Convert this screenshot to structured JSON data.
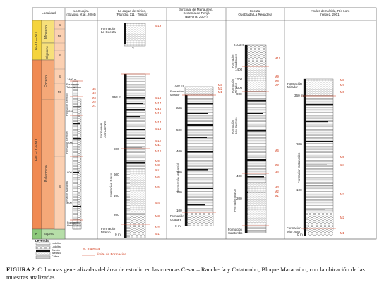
{
  "headers": {
    "localidad": "Localidad",
    "col1": [
      "La Guajira",
      "(Bayona et al.,2004)"
    ],
    "col2": [
      "La Jagua de Ibirico,",
      "(Plancha 111 - Toledo)"
    ],
    "col3": [
      "Sinclinal de Manaurete,",
      "Serranía de Perijá",
      "(Bayona, 2007)"
    ],
    "col4": [
      "Cúcuta,",
      "Quebrada La Regadera"
    ],
    "col5": [
      "Andes de Mérida, Río Loro",
      "(Yepez, 2001)"
    ]
  },
  "time_scale": {
    "neogene": "NEOGENO",
    "mioceno": "Mioceno",
    "oligoceno": "Oligoceno",
    "paleogeno": "PALEOGENO",
    "eoceno": "Eoceno",
    "paleoceno": "Paleoceno",
    "k": "K",
    "supurio": "Superio",
    "letters": [
      "S",
      "M",
      "I",
      "S",
      "I",
      "S",
      "M",
      "I",
      "S",
      "I"
    ]
  },
  "col1": {
    "ticks": [
      "1400 m",
      "1200",
      "1000",
      "800",
      "600"
    ],
    "samples": [
      "M5",
      "M4",
      "M3",
      "M2",
      "M1"
    ],
    "formations": [
      [
        "Formación",
        "Tabaco"
      ],
      [
        "Formación Cerrejón",
        "(Unidad",
        "superior)"
      ],
      [
        "Formación Cerrejón",
        "(Unidad",
        "inferior)"
      ],
      [
        "Formación Manantial"
      ],
      [
        "Formación",
        "Hato Nuevo"
      ]
    ]
  },
  "col2": {
    "ticks": [
      "950 m",
      "800",
      "600",
      "400",
      "200",
      "0 m"
    ],
    "samples": [
      "M19",
      "M18",
      "M17",
      "M16",
      "M15",
      "M14",
      "M13",
      "M12",
      "M11",
      "M10",
      "M9",
      "M8",
      "M7",
      "M6",
      "M5",
      "M4",
      "M3",
      "M2",
      "M1"
    ],
    "question": "?",
    "formations": [
      [
        "Formación",
        "La Cuesta"
      ],
      [
        "Formación",
        "Los Cuervos"
      ],
      [
        "Formación Barco"
      ],
      [
        "Formación",
        "Molino"
      ]
    ]
  },
  "col3": {
    "ticks": [
      "700 m",
      "600",
      "500",
      "400",
      "300",
      "200",
      "100",
      "0 m"
    ],
    "samples": [
      "M3",
      "M2",
      "M1"
    ],
    "formations": [
      [
        "Formación",
        "Mirador"
      ],
      [
        "Formación Manantial"
      ],
      [
        "Formación",
        "Guasare"
      ]
    ]
  },
  "col4": {
    "ticks": [
      "2100 m",
      "1400",
      "1200",
      "1000",
      "900",
      "400",
      "200"
    ],
    "samples": [
      "M10",
      "M9",
      "M8",
      "M7",
      "M6",
      "M5",
      "M4",
      "M3",
      "M2",
      "M1"
    ],
    "formations": [
      [
        "Formación",
        "Carbonera"
      ],
      [
        "Formación",
        "Mirador"
      ],
      [
        "Formación",
        "Los Cuervos"
      ],
      [
        "Formación Barco"
      ],
      [
        "Formación",
        "Catatumbo"
      ]
    ]
  },
  "col5": {
    "ticks": [
      "360 m",
      "200",
      "100",
      "0 m"
    ],
    "samples": [
      "M8",
      "M7",
      "M6",
      "M5",
      "M4",
      "M3",
      "M2",
      "M1"
    ],
    "formations": [
      [
        "Formación",
        "Mirador"
      ],
      [
        "Formación Catatumbo"
      ],
      [
        "Formación",
        "Mito Juan"
      ]
    ]
  },
  "legend": {
    "title": "Leyenda",
    "rows": [
      "Lodolita",
      "Lodolita",
      "Carbón",
      "Arenisca",
      "Caliza"
    ],
    "sample_label": "M: muestra",
    "limit_label": "límite de Formación"
  },
  "caption": {
    "lead": "FIGURA 2.",
    "text": "Columnas generalizadas del área de estudio en las cuencas Cesar – Ranchería y Catatumbo, Bloque Maracaibo; con la ubicación de las muestras analizadas."
  },
  "colors": {
    "neogene": "#f5d43c",
    "paleogene": "#f08a52",
    "paleo_light": "#f5a878",
    "k_green": "#8cc97a",
    "sample_red": "#d23a1a",
    "ink": "#222222"
  }
}
